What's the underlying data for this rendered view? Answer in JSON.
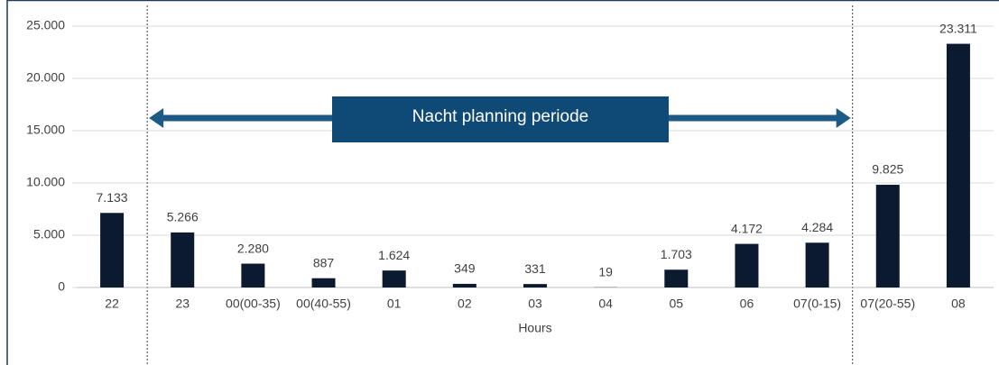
{
  "chart_data": {
    "type": "bar",
    "annotation": "Nacht planning periode",
    "x_label": "Hours",
    "categories": [
      "22",
      "23",
      "00(00-35)",
      "00(40-55)",
      "01",
      "02",
      "03",
      "04",
      "05",
      "06",
      "07(0-15)",
      "07(20-55)",
      "08"
    ],
    "values": [
      7133,
      5266,
      2280,
      887,
      1624,
      349,
      331,
      19,
      1703,
      4172,
      4284,
      9825,
      23311
    ],
    "value_labels": [
      "7.133",
      "5.266",
      "2.280",
      "887",
      "1.624",
      "349",
      "331",
      "19",
      "1.703",
      "4.172",
      "4.284",
      "9.825",
      "23.311"
    ],
    "color": "#0b1a2e",
    "ylim": [
      0,
      25000
    ],
    "yticks": [
      0,
      {
        "value": 5000,
        "label": "5.000"
      },
      {
        "value": 10000,
        "label": "10.000"
      },
      {
        "value": 15000,
        "label": "15.000"
      },
      {
        "value": 20000,
        "label": "20.000"
      },
      {
        "value": 25000,
        "label": "25.000"
      }
    ],
    "grid": true
  }
}
